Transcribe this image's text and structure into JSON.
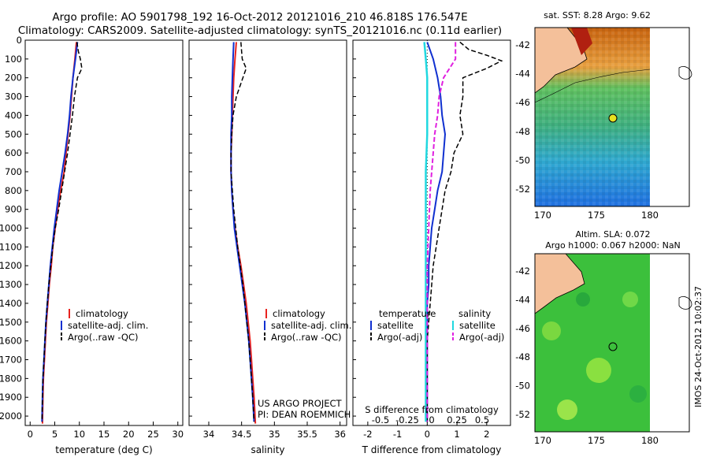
{
  "header": {
    "line1": "Argo profile: AO 5901798_192 16-Oct-2012 20121016_210 46.818S 176.547E",
    "line2": "Climatology: CARS2009. Satellite-adjusted climatology: synTS_20121016.nc (0.11d earlier)"
  },
  "colors": {
    "climatology": "#e8231f",
    "satellite": "#1030d0",
    "argo": "#000000",
    "sat_s": "#20d8e0",
    "argo_s": "#e020e0"
  },
  "pressure_ticks": [
    0,
    100,
    200,
    300,
    400,
    500,
    600,
    700,
    800,
    900,
    1000,
    1100,
    1200,
    1300,
    1400,
    1500,
    1600,
    1700,
    1800,
    1900,
    2000
  ],
  "legend_profile": {
    "clim": "climatology",
    "sat": "satellite-adj. clim.",
    "argo": "Argo(..raw -QC)"
  },
  "legend_diff": {
    "t_head": "temperature",
    "s_head": "salinity",
    "sat": "satellite",
    "argo": "Argo(-adj)"
  },
  "credit": {
    "line1": "US ARGO PROJECT",
    "line2": "PI: DEAN ROEMMICH"
  },
  "diff_top_label": "S difference from climatology",
  "map_top": {
    "title": "sat. SST: 8.28  Argo: 9.62"
  },
  "map_bottom": {
    "title1": "Altim. SLA: 0.072",
    "title2": "Argo h1000: 0.067 h2000: NaN"
  },
  "map_ticks": {
    "lat": [
      "-42",
      "-44",
      "-46",
      "-48",
      "-50",
      "-52"
    ],
    "lon": [
      "170",
      "175",
      "180"
    ]
  },
  "watermark": "IMOS 24-Oct-2012 10:02:37",
  "chart_data": [
    {
      "type": "line",
      "xlabel": "temperature (deg C)",
      "xlim": [
        -1,
        31
      ],
      "xticks": [
        0,
        5,
        10,
        15,
        20,
        25,
        30
      ],
      "ylim": [
        0,
        2050
      ],
      "series": [
        {
          "name": "climatology",
          "color": "#e8231f",
          "width": 2,
          "dash": "",
          "points": [
            [
              9.4,
              10
            ],
            [
              9.1,
              100
            ],
            [
              8.7,
              200
            ],
            [
              8.4,
              300
            ],
            [
              8.1,
              400
            ],
            [
              7.7,
              500
            ],
            [
              7.3,
              600
            ],
            [
              6.9,
              700
            ],
            [
              6.2,
              800
            ],
            [
              5.6,
              900
            ],
            [
              5.1,
              1000
            ],
            [
              4.6,
              1100
            ],
            [
              4.3,
              1200
            ],
            [
              3.9,
              1300
            ],
            [
              3.6,
              1400
            ],
            [
              3.3,
              1500
            ],
            [
              3.1,
              1600
            ],
            [
              2.9,
              1700
            ],
            [
              2.7,
              1800
            ],
            [
              2.6,
              1900
            ],
            [
              2.5,
              2040
            ]
          ]
        },
        {
          "name": "satellite-adj. clim.",
          "color": "#1030d0",
          "width": 2,
          "dash": "",
          "points": [
            [
              9.6,
              10
            ],
            [
              9.2,
              100
            ],
            [
              8.7,
              200
            ],
            [
              8.3,
              300
            ],
            [
              8.0,
              400
            ],
            [
              7.6,
              500
            ],
            [
              7.1,
              600
            ],
            [
              6.5,
              700
            ],
            [
              5.9,
              800
            ],
            [
              5.4,
              900
            ],
            [
              4.9,
              1000
            ],
            [
              4.5,
              1100
            ],
            [
              4.1,
              1200
            ],
            [
              3.8,
              1300
            ],
            [
              3.5,
              1400
            ],
            [
              3.2,
              1500
            ],
            [
              3.0,
              1600
            ],
            [
              2.8,
              1700
            ],
            [
              2.6,
              1800
            ],
            [
              2.5,
              1900
            ],
            [
              2.4,
              2030
            ]
          ]
        },
        {
          "name": "Argo(..raw -QC)",
          "color": "#000000",
          "width": 1.5,
          "dash": "6,3",
          "points": [
            [
              9.5,
              10
            ],
            [
              9.8,
              60
            ],
            [
              10.2,
              100
            ],
            [
              10.5,
              150
            ],
            [
              9.6,
              200
            ],
            [
              9.0,
              300
            ],
            [
              8.6,
              400
            ],
            [
              8.1,
              500
            ],
            [
              7.6,
              600
            ],
            [
              7.0,
              700
            ],
            [
              6.4,
              800
            ],
            [
              5.8,
              900
            ],
            [
              5.1,
              1000
            ],
            [
              4.6,
              1100
            ],
            [
              4.2,
              1200
            ],
            [
              3.8,
              1300
            ],
            [
              3.5,
              1400
            ],
            [
              3.2,
              1500
            ],
            [
              3.0,
              1600
            ],
            [
              2.8,
              1700
            ],
            [
              2.6,
              1800
            ],
            [
              2.5,
              1900
            ],
            [
              2.4,
              2030
            ]
          ]
        }
      ]
    },
    {
      "type": "line",
      "xlabel": "salinity",
      "xlim": [
        33.7,
        36.1
      ],
      "xticks": [
        34,
        34.5,
        35,
        35.5,
        36
      ],
      "ylim": [
        0,
        2050
      ],
      "series": [
        {
          "name": "climatology",
          "color": "#e8231f",
          "width": 2,
          "dash": "",
          "points": [
            [
              34.42,
              10
            ],
            [
              34.4,
              100
            ],
            [
              34.38,
              200
            ],
            [
              34.37,
              300
            ],
            [
              34.36,
              400
            ],
            [
              34.35,
              500
            ],
            [
              34.34,
              600
            ],
            [
              34.34,
              700
            ],
            [
              34.35,
              800
            ],
            [
              34.37,
              900
            ],
            [
              34.4,
              1000
            ],
            [
              34.44,
              1100
            ],
            [
              34.49,
              1200
            ],
            [
              34.53,
              1300
            ],
            [
              34.57,
              1400
            ],
            [
              34.6,
              1500
            ],
            [
              34.63,
              1600
            ],
            [
              34.65,
              1700
            ],
            [
              34.67,
              1800
            ],
            [
              34.69,
              1900
            ],
            [
              34.71,
              2040
            ]
          ]
        },
        {
          "name": "satellite-adj. clim.",
          "color": "#1030d0",
          "width": 2,
          "dash": "",
          "points": [
            [
              34.38,
              10
            ],
            [
              34.37,
              100
            ],
            [
              34.36,
              200
            ],
            [
              34.35,
              300
            ],
            [
              34.35,
              400
            ],
            [
              34.34,
              500
            ],
            [
              34.34,
              600
            ],
            [
              34.34,
              700
            ],
            [
              34.35,
              800
            ],
            [
              34.37,
              900
            ],
            [
              34.39,
              1000
            ],
            [
              34.43,
              1100
            ],
            [
              34.47,
              1200
            ],
            [
              34.51,
              1300
            ],
            [
              34.55,
              1400
            ],
            [
              34.58,
              1500
            ],
            [
              34.61,
              1600
            ],
            [
              34.63,
              1700
            ],
            [
              34.65,
              1800
            ],
            [
              34.67,
              1900
            ],
            [
              34.69,
              2030
            ]
          ]
        },
        {
          "name": "Argo(..raw -QC)",
          "color": "#000000",
          "width": 1.5,
          "dash": "6,3",
          "points": [
            [
              34.49,
              10
            ],
            [
              34.5,
              60
            ],
            [
              34.51,
              100
            ],
            [
              34.57,
              150
            ],
            [
              34.52,
              200
            ],
            [
              34.42,
              300
            ],
            [
              34.37,
              400
            ],
            [
              34.35,
              500
            ],
            [
              34.34,
              600
            ],
            [
              34.34,
              700
            ],
            [
              34.36,
              800
            ],
            [
              34.38,
              900
            ],
            [
              34.41,
              1000
            ],
            [
              34.44,
              1100
            ],
            [
              34.48,
              1200
            ],
            [
              34.52,
              1300
            ],
            [
              34.55,
              1400
            ],
            [
              34.58,
              1500
            ],
            [
              34.61,
              1600
            ],
            [
              34.63,
              1700
            ],
            [
              34.65,
              1800
            ],
            [
              34.67,
              1900
            ],
            [
              34.69,
              2030
            ]
          ]
        }
      ]
    },
    {
      "type": "line",
      "xlabel": "T difference from climatology",
      "xlim": [
        -2.5,
        2.8
      ],
      "xticks": [
        -2,
        -1,
        0,
        1,
        2
      ],
      "top_axis": {
        "label": "S difference from climatology",
        "ticks": [
          "-0.5",
          "-0.25",
          "0",
          "0.25",
          "0.5"
        ]
      },
      "ylim": [
        0,
        2050
      ],
      "series": [
        {
          "name": "temperature satellite",
          "color": "#1030d0",
          "width": 2,
          "dash": "",
          "points": [
            [
              0.0,
              10
            ],
            [
              0.2,
              100
            ],
            [
              0.35,
              200
            ],
            [
              0.45,
              300
            ],
            [
              0.5,
              400
            ],
            [
              0.6,
              500
            ],
            [
              0.55,
              600
            ],
            [
              0.5,
              700
            ],
            [
              0.35,
              800
            ],
            [
              0.25,
              900
            ],
            [
              0.15,
              1000
            ],
            [
              0.1,
              1100
            ],
            [
              0.05,
              1200
            ],
            [
              0.05,
              1300
            ],
            [
              0.0,
              1400
            ],
            [
              0.0,
              1500
            ],
            [
              0.0,
              1600
            ],
            [
              0.0,
              1700
            ],
            [
              0.0,
              1800
            ],
            [
              0.0,
              1900
            ],
            [
              0.0,
              2030
            ]
          ]
        },
        {
          "name": "temperature Argo(-adj)",
          "color": "#000000",
          "width": 1.5,
          "dash": "6,3",
          "points": [
            [
              1.1,
              10
            ],
            [
              1.4,
              50
            ],
            [
              2.0,
              80
            ],
            [
              2.5,
              110
            ],
            [
              2.0,
              150
            ],
            [
              1.2,
              200
            ],
            [
              1.2,
              300
            ],
            [
              1.1,
              400
            ],
            [
              1.2,
              500
            ],
            [
              0.9,
              600
            ],
            [
              0.8,
              700
            ],
            [
              0.6,
              800
            ],
            [
              0.5,
              900
            ],
            [
              0.4,
              1000
            ],
            [
              0.3,
              1100
            ],
            [
              0.2,
              1200
            ],
            [
              0.15,
              1300
            ],
            [
              0.1,
              1400
            ],
            [
              0.05,
              1500
            ],
            [
              0.0,
              1600
            ],
            [
              0.0,
              1700
            ],
            [
              0.0,
              1800
            ],
            [
              0.0,
              1900
            ],
            [
              0.0,
              2030
            ]
          ]
        },
        {
          "name": "salinity satellite",
          "color": "#20d8e0",
          "width": 2.5,
          "dash": "",
          "points": [
            [
              -0.1,
              10
            ],
            [
              -0.05,
              100
            ],
            [
              0.0,
              200
            ],
            [
              0.0,
              300
            ],
            [
              0.0,
              500
            ],
            [
              -0.05,
              700
            ],
            [
              -0.05,
              900
            ],
            [
              -0.05,
              1100
            ],
            [
              -0.05,
              1300
            ],
            [
              -0.05,
              1500
            ],
            [
              -0.05,
              1700
            ],
            [
              -0.05,
              1900
            ],
            [
              -0.05,
              2030
            ]
          ]
        },
        {
          "name": "salinity Argo(-adj)",
          "color": "#e020e0",
          "width": 2,
          "dash": "6,3",
          "points": [
            [
              0.95,
              10
            ],
            [
              0.95,
              100
            ],
            [
              0.55,
              200
            ],
            [
              0.4,
              300
            ],
            [
              0.35,
              400
            ],
            [
              0.25,
              500
            ],
            [
              0.2,
              600
            ],
            [
              0.15,
              700
            ],
            [
              0.1,
              800
            ],
            [
              0.05,
              1000
            ],
            [
              0.0,
              1200
            ],
            [
              0.0,
              1400
            ],
            [
              0.0,
              1600
            ],
            [
              0.0,
              1800
            ],
            [
              0.0,
              2030
            ]
          ]
        }
      ]
    }
  ]
}
